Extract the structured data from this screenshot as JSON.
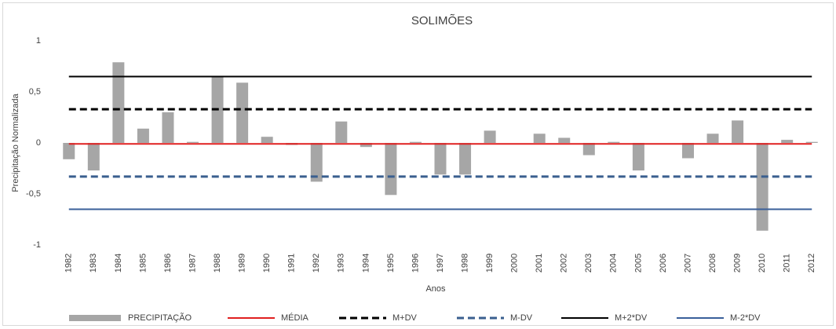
{
  "chart_data": {
    "type": "bar",
    "title": "SOLIMÕES",
    "x_label": "Anos",
    "y_label": "Precipitação Normalizada",
    "categories": [
      "1982",
      "1983",
      "1984",
      "1985",
      "1986",
      "1987",
      "1988",
      "1989",
      "1990",
      "1991",
      "1992",
      "1993",
      "1994",
      "1995",
      "1996",
      "1997",
      "1998",
      "1999",
      "2000",
      "2001",
      "2002",
      "2003",
      "2004",
      "2005",
      "2006",
      "2007",
      "2008",
      "2009",
      "2010",
      "2011",
      "2012"
    ],
    "ylim": [
      -1,
      1
    ],
    "yticks": [
      1,
      {
        "value": 0.5,
        "label": "0,5"
      },
      0,
      {
        "value": -0.5,
        "label": "-0,5"
      },
      -1
    ],
    "grid": false,
    "legend": "bottom",
    "series": [
      {
        "name": "PRECIPITAÇÃO",
        "type": "bar",
        "color": "#a6a6a6",
        "values": [
          -0.16,
          -0.27,
          0.79,
          0.14,
          0.3,
          0.01,
          0.65,
          0.59,
          0.06,
          -0.02,
          -0.38,
          0.21,
          -0.04,
          -0.51,
          0.01,
          -0.31,
          -0.31,
          0.12,
          0,
          0.09,
          0.05,
          -0.12,
          0.01,
          -0.27,
          0,
          -0.15,
          0.09,
          0.22,
          -0.86,
          0.03,
          0.01
        ]
      },
      {
        "name": "MÉDIA",
        "type": "line",
        "dash": "solid",
        "color": "#e02020",
        "values": [
          -0.01,
          -0.01,
          -0.01,
          -0.01,
          -0.01,
          -0.01,
          -0.01,
          -0.01,
          -0.01,
          -0.01,
          -0.01,
          -0.01,
          -0.01,
          -0.01,
          -0.01,
          -0.01,
          -0.01,
          -0.01,
          -0.01,
          -0.01,
          -0.01,
          -0.01,
          -0.01,
          -0.01,
          -0.01,
          -0.01,
          -0.01,
          -0.01,
          -0.01,
          -0.01,
          -0.01
        ]
      },
      {
        "name": "M+DV",
        "type": "line",
        "dash": "dashed",
        "color": "#000000",
        "values": [
          0.33,
          0.33,
          0.33,
          0.33,
          0.33,
          0.33,
          0.33,
          0.33,
          0.33,
          0.33,
          0.33,
          0.33,
          0.33,
          0.33,
          0.33,
          0.33,
          0.33,
          0.33,
          0.33,
          0.33,
          0.33,
          0.33,
          0.33,
          0.33,
          0.33,
          0.33,
          0.33,
          0.33,
          0.33,
          0.33,
          0.33
        ]
      },
      {
        "name": "M-DV",
        "type": "line",
        "dash": "dashed",
        "color": "#3a5f8f",
        "values": [
          -0.33,
          -0.33,
          -0.33,
          -0.33,
          -0.33,
          -0.33,
          -0.33,
          -0.33,
          -0.33,
          -0.33,
          -0.33,
          -0.33,
          -0.33,
          -0.33,
          -0.33,
          -0.33,
          -0.33,
          -0.33,
          -0.33,
          -0.33,
          -0.33,
          -0.33,
          -0.33,
          -0.33,
          -0.33,
          -0.33,
          -0.33,
          -0.33,
          -0.33,
          -0.33,
          -0.33
        ]
      },
      {
        "name": "M+2*DV",
        "type": "line",
        "dash": "solid",
        "color": "#000000",
        "values": [
          0.65,
          0.65,
          0.65,
          0.65,
          0.65,
          0.65,
          0.65,
          0.65,
          0.65,
          0.65,
          0.65,
          0.65,
          0.65,
          0.65,
          0.65,
          0.65,
          0.65,
          0.65,
          0.65,
          0.65,
          0.65,
          0.65,
          0.65,
          0.65,
          0.65,
          0.65,
          0.65,
          0.65,
          0.65,
          0.65,
          0.65
        ]
      },
      {
        "name": "M-2*DV",
        "type": "line",
        "dash": "solid",
        "color": "#3a5f9a",
        "values": [
          -0.65,
          -0.65,
          -0.65,
          -0.65,
          -0.65,
          -0.65,
          -0.65,
          -0.65,
          -0.65,
          -0.65,
          -0.65,
          -0.65,
          -0.65,
          -0.65,
          -0.65,
          -0.65,
          -0.65,
          -0.65,
          -0.65,
          -0.65,
          -0.65,
          -0.65,
          -0.65,
          -0.65,
          -0.65,
          -0.65,
          -0.65,
          -0.65,
          -0.65,
          -0.65,
          -0.65
        ]
      }
    ]
  }
}
